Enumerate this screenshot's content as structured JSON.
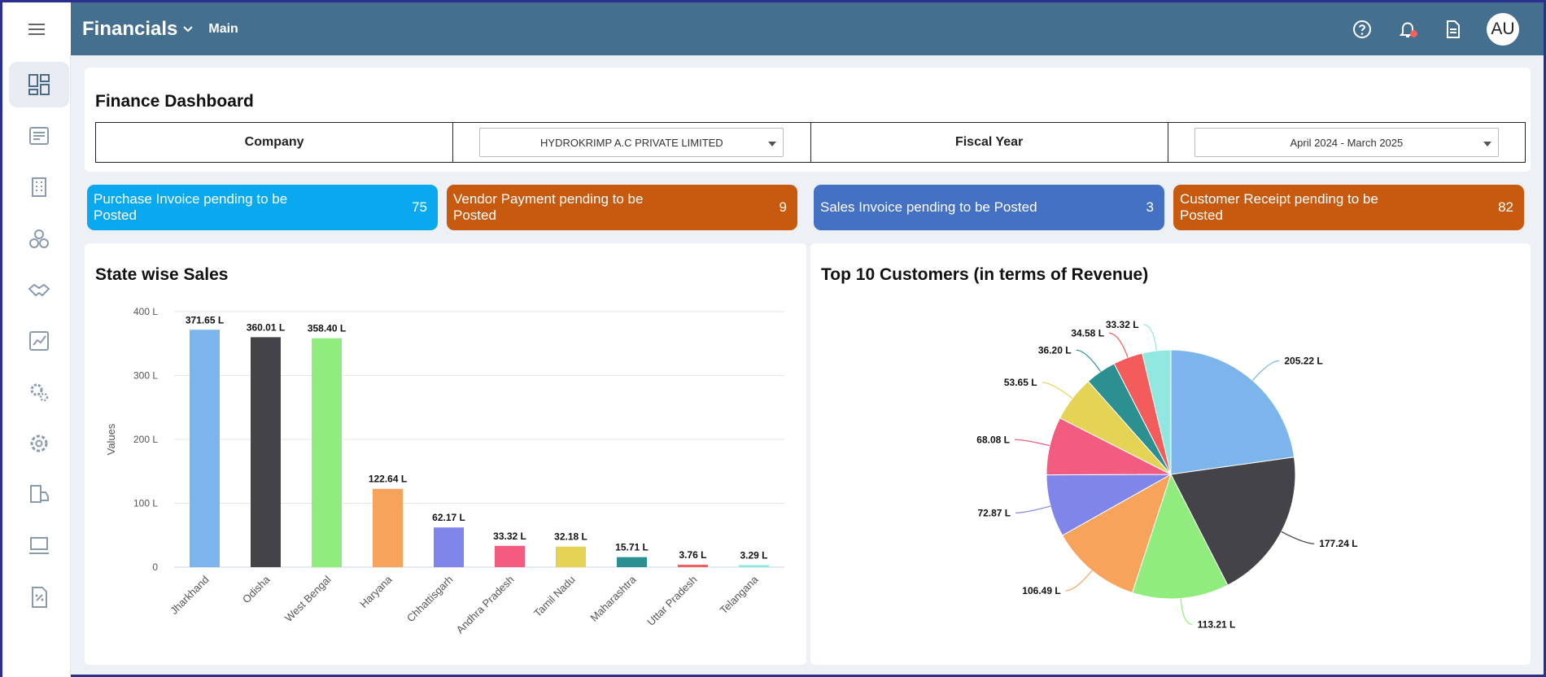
{
  "app": {
    "title": "Financials",
    "subtitle": "Main",
    "avatar": "AU"
  },
  "icons": {
    "menu": "hamburger-icon",
    "help": "help-circle-icon",
    "notifications": "bell-icon",
    "document": "document-icon"
  },
  "sidebar": {
    "items": [
      {
        "name": "dashboard-icon",
        "active": true
      },
      {
        "name": "invoice-icon"
      },
      {
        "name": "building-icon"
      },
      {
        "name": "coins-icon"
      },
      {
        "name": "handshake-icon"
      },
      {
        "name": "report-chart-icon"
      },
      {
        "name": "gears-icon"
      },
      {
        "name": "settings-gear-icon"
      },
      {
        "name": "truck-icon"
      },
      {
        "name": "computer-icon"
      },
      {
        "name": "tax-document-icon"
      }
    ]
  },
  "dashboard": {
    "title": "Finance Dashboard",
    "company_label": "Company",
    "company_value": "HYDROKRIMP A.C PRIVATE LIMITED",
    "fiscal_label": "Fiscal Year",
    "fiscal_value": "April 2024 - March 2025"
  },
  "kpis": [
    {
      "label": "Purchase Invoice pending to be Posted",
      "count": "75",
      "color": "#0aa9ef"
    },
    {
      "label": "Vendor Payment pending to be Posted",
      "count": "9",
      "color": "#c85a10"
    },
    {
      "label": "Sales Invoice pending to be Posted",
      "count": "3",
      "color": "#4471c4"
    },
    {
      "label": "Customer Receipt pending to be Posted",
      "count": "82",
      "color": "#c85a10"
    }
  ],
  "chart_data": [
    {
      "type": "bar",
      "title": "State wise Sales",
      "ylabel": "Values",
      "xlabel": "",
      "ylim": [
        0,
        400
      ],
      "yticks": [
        "0",
        "100 L",
        "200 L",
        "300 L",
        "400 L"
      ],
      "categories": [
        "Jharkhand",
        "Odisha",
        "West Bengal",
        "Haryana",
        "Chhattisgarh",
        "Andhra Pradesh",
        "Tamil Nadu",
        "Maharashtra",
        "Uttar Pradesh",
        "Telangana"
      ],
      "values": [
        371.65,
        360.01,
        358.4,
        122.64,
        62.17,
        33.32,
        32.18,
        15.71,
        3.76,
        3.29
      ],
      "labels": [
        "371.65 L",
        "360.01 L",
        "358.40 L",
        "122.64 L",
        "62.17 L",
        "33.32 L",
        "32.18 L",
        "15.71 L",
        "3.76 L",
        "3.29 L"
      ],
      "colors": [
        "#7cb5ec",
        "#434348",
        "#90ed7d",
        "#f7a35c",
        "#8085e9",
        "#f15c80",
        "#e4d354",
        "#2b908f",
        "#f45b5b",
        "#91e8e1"
      ],
      "grid": true
    },
    {
      "type": "pie",
      "title": "Top 10 Customers (in terms of Revenue)",
      "values": [
        205.22,
        177.24,
        113.21,
        106.49,
        72.87,
        68.08,
        53.65,
        36.2,
        34.58,
        33.32
      ],
      "labels": [
        "205.22 L",
        "177.24 L",
        "113.21 L",
        "106.49 L",
        "72.87 L",
        "68.08 L",
        "53.65 L",
        "36.20 L",
        "34.58 L",
        "33.32 L"
      ],
      "colors": [
        "#7cb5ec",
        "#434348",
        "#90ed7d",
        "#f7a35c",
        "#8085e9",
        "#f15c80",
        "#e4d354",
        "#2b908f",
        "#f45b5b",
        "#91e8e1"
      ]
    }
  ]
}
